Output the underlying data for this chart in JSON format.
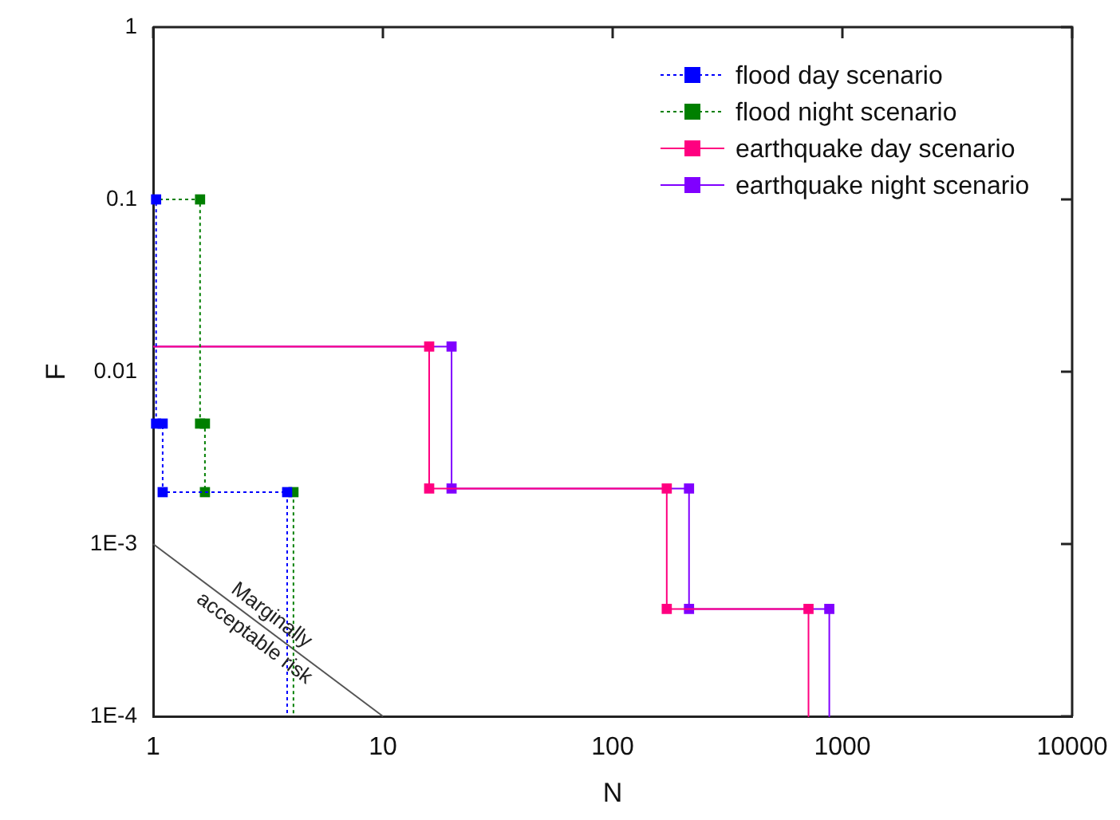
{
  "chart_data": {
    "type": "line",
    "xlabel": "N",
    "ylabel": "F",
    "log": "xy",
    "xlim": [
      1,
      10000
    ],
    "ylim": [
      0.0001,
      1
    ],
    "xticks": [
      1,
      10,
      100,
      1000,
      10000
    ],
    "yticks": [
      {
        "value": 0.0001,
        "label": "1E-4"
      },
      {
        "value": 0.001,
        "label": "1E-3"
      },
      0.01,
      0.1,
      1
    ],
    "legend": "top right",
    "marker": "square",
    "grid": false,
    "series": [
      {
        "name": "flood day scenario",
        "color": "#0000ff",
        "line_style": "dotted",
        "x": [
          1,
          1.03,
          1.03,
          1.1,
          1.1,
          3.83,
          3.83
        ],
        "values": [
          0.1,
          0.1,
          0.005,
          0.005,
          0.002,
          0.002,
          0.0001
        ]
      },
      {
        "name": "flood night scenario",
        "color": "#007f00",
        "line_style": "dotted",
        "x": [
          1,
          1.6,
          1.6,
          1.68,
          1.68,
          4.08,
          4.08
        ],
        "values": [
          0.1,
          0.1,
          0.005,
          0.005,
          0.002,
          0.002,
          0.0001
        ]
      },
      {
        "name": "earthquake day scenario",
        "color": "#ff0080",
        "line_style": "solid",
        "x": [
          1,
          15.9,
          15.9,
          172,
          172,
          712,
          712
        ],
        "values": [
          0.014,
          0.014,
          0.0021,
          0.0021,
          0.00042,
          0.00042,
          0.0001
        ]
      },
      {
        "name": "earthquake night scenario",
        "color": "#8000ff",
        "line_style": "solid",
        "x": [
          1,
          19.9,
          19.9,
          215,
          215,
          877,
          877
        ],
        "values": [
          0.014,
          0.014,
          0.0021,
          0.0021,
          0.00042,
          0.00042,
          0.0001
        ]
      },
      {
        "color": "#555555",
        "line_style": "solid",
        "marker": "none",
        "x": [
          1,
          10
        ],
        "values": [
          0.001,
          0.0001
        ]
      }
    ],
    "annotations": [
      {
        "text": "Marginally acceptable risk",
        "x": 3,
        "y": 0.00033
      }
    ]
  }
}
